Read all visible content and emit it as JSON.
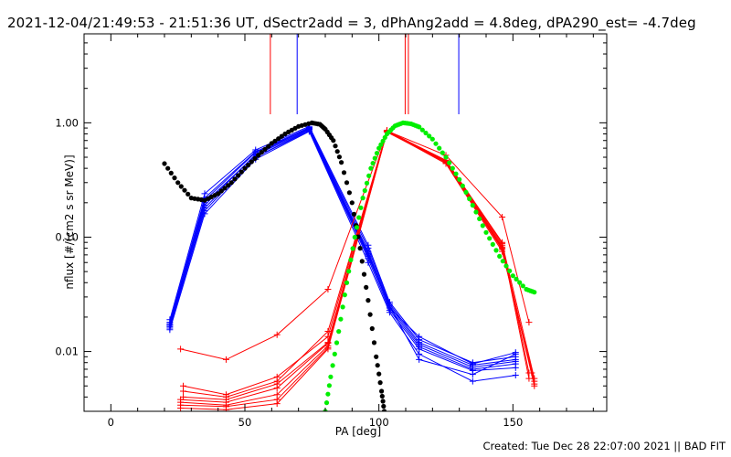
{
  "header": {
    "title": "2021-12-04/21:49:53 - 21:51:36 UT, dSectr2add = 3, dPhAng2add = 4.8deg, dPA290_est= -4.7deg"
  },
  "footer": {
    "created": "Created: Tue Dec 28 22:07:00 2021 || BAD FIT"
  },
  "chart_data": {
    "type": "line",
    "title": "2021-12-04/21:49:53 - 21:51:36 UT, dSectr2add = 3, dPhAng2add = 4.8deg, dPA290_est= -4.7deg",
    "xlabel": "PA [deg]",
    "ylabel": "nflux [#/(cm2 s sr MeV)]",
    "xlim": [
      -10,
      185
    ],
    "ylim": [
      0.003,
      6
    ],
    "yscale": "log",
    "x_ticks": [
      0,
      50,
      100,
      150
    ],
    "y_ticks": [
      {
        "value": 1.0,
        "label": "1.00"
      },
      {
        "value": 0.1,
        "label": "0.10"
      },
      {
        "value": 0.01,
        "label": "0.01"
      }
    ],
    "grid": false,
    "colors": {
      "blue": "#0000ff",
      "red": "#ff0000",
      "black": "#000000",
      "green": "#00ee00"
    },
    "vertical_lines": [
      {
        "color": "#ff0000",
        "x": 59.5
      },
      {
        "color": "#0000ff",
        "x": 69.5
      },
      {
        "color": "#ff0000",
        "x": 109.8
      },
      {
        "color": "#ff0000",
        "x": 111.0
      },
      {
        "color": "#0000ff",
        "x": 129.8
      }
    ],
    "series": [
      {
        "color": "#0000ff",
        "x": [
          22,
          35,
          54,
          74,
          96,
          104,
          115,
          135,
          151
        ],
        "y": [
          0.016,
          0.18,
          0.5,
          0.85,
          0.065,
          0.023,
          0.0105,
          0.0068,
          0.0072
        ]
      },
      {
        "color": "#0000ff",
        "x": [
          22,
          35,
          54,
          74,
          96,
          104,
          115,
          135,
          151
        ],
        "y": [
          0.017,
          0.2,
          0.52,
          0.88,
          0.07,
          0.024,
          0.011,
          0.007,
          0.0078
        ]
      },
      {
        "color": "#0000ff",
        "x": [
          22,
          35,
          54,
          74,
          96,
          104,
          115,
          135,
          151
        ],
        "y": [
          0.0175,
          0.21,
          0.55,
          0.89,
          0.075,
          0.025,
          0.0115,
          0.0073,
          0.0082
        ]
      },
      {
        "color": "#0000ff",
        "x": [
          22,
          35,
          54,
          74,
          96,
          104,
          115,
          135,
          151
        ],
        "y": [
          0.018,
          0.22,
          0.56,
          0.91,
          0.08,
          0.026,
          0.012,
          0.0076,
          0.0085
        ]
      },
      {
        "color": "#0000ff",
        "x": [
          22,
          35,
          54,
          74,
          96,
          104,
          115,
          135,
          151
        ],
        "y": [
          0.019,
          0.24,
          0.58,
          0.93,
          0.085,
          0.027,
          0.0127,
          0.008,
          0.009
        ]
      },
      {
        "color": "#0000ff",
        "x": [
          22,
          35,
          54,
          74,
          96,
          104,
          115,
          135,
          151
        ],
        "y": [
          0.0155,
          0.16,
          0.48,
          0.84,
          0.06,
          0.022,
          0.0095,
          0.0055,
          0.0062
        ]
      },
      {
        "color": "#0000ff",
        "x": [
          22,
          35,
          54,
          74,
          96,
          104,
          115,
          135,
          151
        ],
        "y": [
          0.0165,
          0.17,
          0.5,
          0.87,
          0.068,
          0.025,
          0.0085,
          0.0063,
          0.0095
        ]
      },
      {
        "color": "#0000ff",
        "x": [
          22,
          35,
          54,
          74,
          96,
          104,
          115,
          135,
          151
        ],
        "y": [
          0.017,
          0.19,
          0.53,
          0.9,
          0.072,
          0.024,
          0.0135,
          0.0078,
          0.0098
        ]
      },
      {
        "color": "#ff0000",
        "x": [
          26,
          43,
          62,
          81,
          103,
          125,
          146,
          156
        ],
        "y": [
          0.0105,
          0.0085,
          0.014,
          0.035,
          0.85,
          0.52,
          0.15,
          0.018
        ]
      },
      {
        "color": "#ff0000",
        "x": [
          27,
          43,
          62,
          81,
          103,
          125,
          146,
          156
        ],
        "y": [
          0.0045,
          0.004,
          0.0055,
          0.015,
          0.85,
          0.47,
          0.09,
          0.0065
        ]
      },
      {
        "color": "#ff0000",
        "x": [
          27,
          43,
          62,
          81,
          103,
          125,
          146,
          156
        ],
        "y": [
          0.005,
          0.0042,
          0.006,
          0.0135,
          0.86,
          0.46,
          0.085,
          0.0058
        ]
      },
      {
        "color": "#ff0000",
        "x": [
          27,
          43,
          62,
          81,
          103,
          125,
          146,
          157
        ],
        "y": [
          0.004,
          0.0038,
          0.0052,
          0.012,
          0.85,
          0.45,
          0.08,
          0.0065
        ]
      },
      {
        "color": "#ff0000",
        "x": [
          26,
          43,
          62,
          81,
          103,
          125,
          146,
          158
        ],
        "y": [
          0.0038,
          0.0036,
          0.0048,
          0.0118,
          0.84,
          0.44,
          0.075,
          0.0055
        ]
      },
      {
        "color": "#ff0000",
        "x": [
          26,
          43,
          62,
          81,
          103,
          125,
          146,
          158
        ],
        "y": [
          0.0036,
          0.0034,
          0.0042,
          0.0112,
          0.83,
          0.45,
          0.078,
          0.0052
        ]
      },
      {
        "color": "#ff0000",
        "x": [
          26,
          43,
          62,
          81,
          103,
          125,
          146,
          158
        ],
        "y": [
          0.0034,
          0.0033,
          0.0038,
          0.0108,
          0.84,
          0.46,
          0.082,
          0.005
        ]
      },
      {
        "color": "#ff0000",
        "x": [
          26,
          43,
          62,
          81,
          103,
          125,
          146,
          158
        ],
        "y": [
          0.0032,
          0.0031,
          0.0035,
          0.0105,
          0.84,
          0.47,
          0.088,
          0.0058
        ]
      }
    ],
    "fit_curves": [
      {
        "color": "#000000",
        "x": [
          20,
          25,
          30,
          35,
          40,
          45,
          50,
          55,
          60,
          65,
          70,
          75,
          78,
          80,
          83,
          86,
          90,
          93,
          96,
          99,
          101,
          102
        ],
        "y": [
          0.44,
          0.3,
          0.22,
          0.21,
          0.24,
          0.3,
          0.4,
          0.52,
          0.66,
          0.8,
          0.93,
          1.0,
          0.97,
          0.88,
          0.7,
          0.45,
          0.2,
          0.08,
          0.028,
          0.009,
          0.0045,
          0.003
        ]
      },
      {
        "color": "#00ee00",
        "x": [
          80,
          82,
          85,
          88,
          91,
          94,
          97,
          100,
          103,
          106,
          109,
          112,
          115,
          120,
          125,
          130,
          135,
          140,
          145,
          150,
          155,
          158
        ],
        "y": [
          0.003,
          0.006,
          0.015,
          0.04,
          0.1,
          0.22,
          0.4,
          0.6,
          0.8,
          0.94,
          1.0,
          0.98,
          0.92,
          0.72,
          0.5,
          0.32,
          0.19,
          0.11,
          0.068,
          0.046,
          0.035,
          0.033
        ]
      }
    ]
  }
}
